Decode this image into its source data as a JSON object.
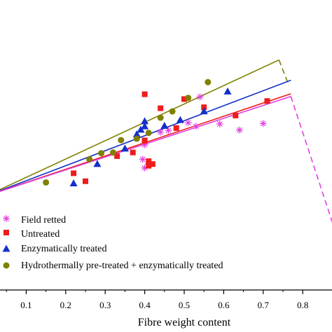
{
  "chart_data": {
    "type": "scatter",
    "xlabel": "Fibre weight content",
    "xlim": [
      0.0,
      0.88
    ],
    "ylim": [
      0.0,
      1.0
    ],
    "x_ticks": [
      0.1,
      0.2,
      0.3,
      0.4,
      0.5,
      0.6,
      0.7,
      0.8
    ],
    "x_tick_labels": [
      "0.1",
      "0.2",
      "0.3",
      "0.4",
      "0.5",
      "0.6",
      "0.7",
      "0.8"
    ],
    "grid": false,
    "legend_position": "bottom-left",
    "series": [
      {
        "name": "Field retted",
        "marker": "asterisk",
        "color": "#e040e0",
        "points": [
          [
            0.4,
            0.505
          ],
          [
            0.44,
            0.653
          ],
          [
            0.46,
            0.66
          ],
          [
            0.51,
            0.692
          ],
          [
            0.53,
            0.677
          ],
          [
            0.54,
            0.799
          ],
          [
            0.59,
            0.687
          ],
          [
            0.64,
            0.662
          ],
          [
            0.7,
            0.689
          ],
          [
            0.41,
            0.522
          ],
          [
            0.4,
            0.601
          ],
          [
            0.395,
            0.541
          ]
        ]
      },
      {
        "name": "Untreated",
        "marker": "square",
        "color": "#ee1c1c",
        "points": [
          [
            0.22,
            0.483
          ],
          [
            0.25,
            0.45
          ],
          [
            0.33,
            0.554
          ],
          [
            0.4,
            0.617
          ],
          [
            0.4,
            0.619
          ],
          [
            0.41,
            0.533
          ],
          [
            0.41,
            0.514
          ],
          [
            0.42,
            0.521
          ],
          [
            0.4,
            0.81
          ],
          [
            0.44,
            0.752
          ],
          [
            0.48,
            0.67
          ],
          [
            0.5,
            0.79
          ],
          [
            0.55,
            0.756
          ],
          [
            0.63,
            0.722
          ],
          [
            0.71,
            0.782
          ],
          [
            0.37,
            0.569
          ]
        ]
      },
      {
        "name": "Enzymatically treated",
        "marker": "triangle",
        "color": "#1230c8",
        "points": [
          [
            0.22,
            0.442
          ],
          [
            0.28,
            0.522
          ],
          [
            0.35,
            0.586
          ],
          [
            0.38,
            0.645
          ],
          [
            0.4,
            0.678
          ],
          [
            0.4,
            0.699
          ],
          [
            0.39,
            0.664
          ],
          [
            0.45,
            0.68
          ],
          [
            0.49,
            0.704
          ],
          [
            0.55,
            0.74
          ],
          [
            0.61,
            0.822
          ]
        ]
      },
      {
        "name": "Hydrothermally pre-treated + enzymatically treated",
        "marker": "circle",
        "color": "#808000",
        "points": [
          [
            0.15,
            0.445
          ],
          [
            0.26,
            0.541
          ],
          [
            0.29,
            0.566
          ],
          [
            0.32,
            0.569
          ],
          [
            0.34,
            0.62
          ],
          [
            0.38,
            0.626
          ],
          [
            0.41,
            0.65
          ],
          [
            0.44,
            0.713
          ],
          [
            0.47,
            0.739
          ],
          [
            0.51,
            0.795
          ],
          [
            0.56,
            0.86
          ]
        ]
      }
    ],
    "model_lines": [
      {
        "color": "#808000",
        "solid": [
          [
            0.0,
            0.39
          ],
          [
            0.74,
            0.952
          ]
        ],
        "dashed": [
          [
            0.74,
            0.952
          ],
          [
            0.765,
            0.846
          ]
        ]
      },
      {
        "color": "#1230c8",
        "solid": [
          [
            0.0,
            0.39
          ],
          [
            0.77,
            0.868
          ]
        ]
      },
      {
        "color": "#ee1c1c",
        "solid": [
          [
            0.0,
            0.39
          ],
          [
            0.77,
            0.812
          ]
        ]
      },
      {
        "color": "#e040e0",
        "solid": [
          [
            0.0,
            0.39
          ],
          [
            0.77,
            0.801
          ]
        ],
        "dashed": [
          [
            0.77,
            0.801
          ],
          [
            0.88,
            0.255
          ]
        ]
      }
    ]
  }
}
